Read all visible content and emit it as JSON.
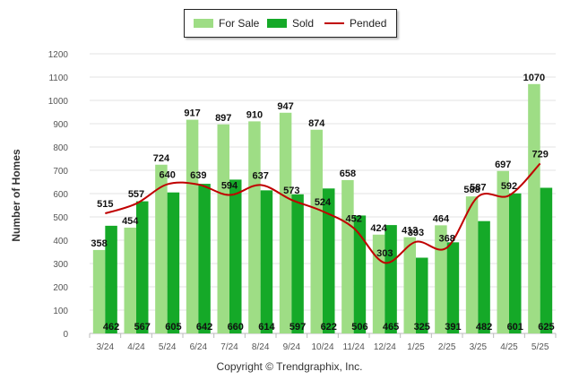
{
  "chart_data": {
    "type": "bar",
    "categories": [
      "3/24",
      "4/24",
      "5/24",
      "6/24",
      "7/24",
      "8/24",
      "9/24",
      "10/24",
      "11/24",
      "12/24",
      "1/25",
      "2/25",
      "3/25",
      "4/25",
      "5/25"
    ],
    "series": [
      {
        "name": "For Sale",
        "type": "bar",
        "color": "#9edd85",
        "values": [
          358,
          454,
          724,
          917,
          897,
          910,
          947,
          874,
          658,
          424,
          413,
          464,
          588,
          697,
          1070
        ]
      },
      {
        "name": "Sold",
        "type": "bar",
        "color": "#15a928",
        "values": [
          462,
          567,
          605,
          642,
          660,
          614,
          597,
          622,
          506,
          465,
          325,
          391,
          482,
          601,
          625
        ]
      },
      {
        "name": "Pended",
        "type": "line",
        "color": "#c00000",
        "values": [
          515,
          557,
          640,
          639,
          594,
          637,
          573,
          524,
          452,
          303,
          393,
          368,
          587,
          592,
          729
        ]
      }
    ],
    "ylabel": "Number of Homes",
    "ylim": [
      0,
      1200
    ],
    "yticks": [
      0,
      100,
      200,
      300,
      400,
      500,
      600,
      700,
      800,
      900,
      1000,
      1100,
      1200
    ],
    "grid": true,
    "legend_position": "top-center"
  },
  "copyright": "Copyright © Trendgraphix, Inc."
}
